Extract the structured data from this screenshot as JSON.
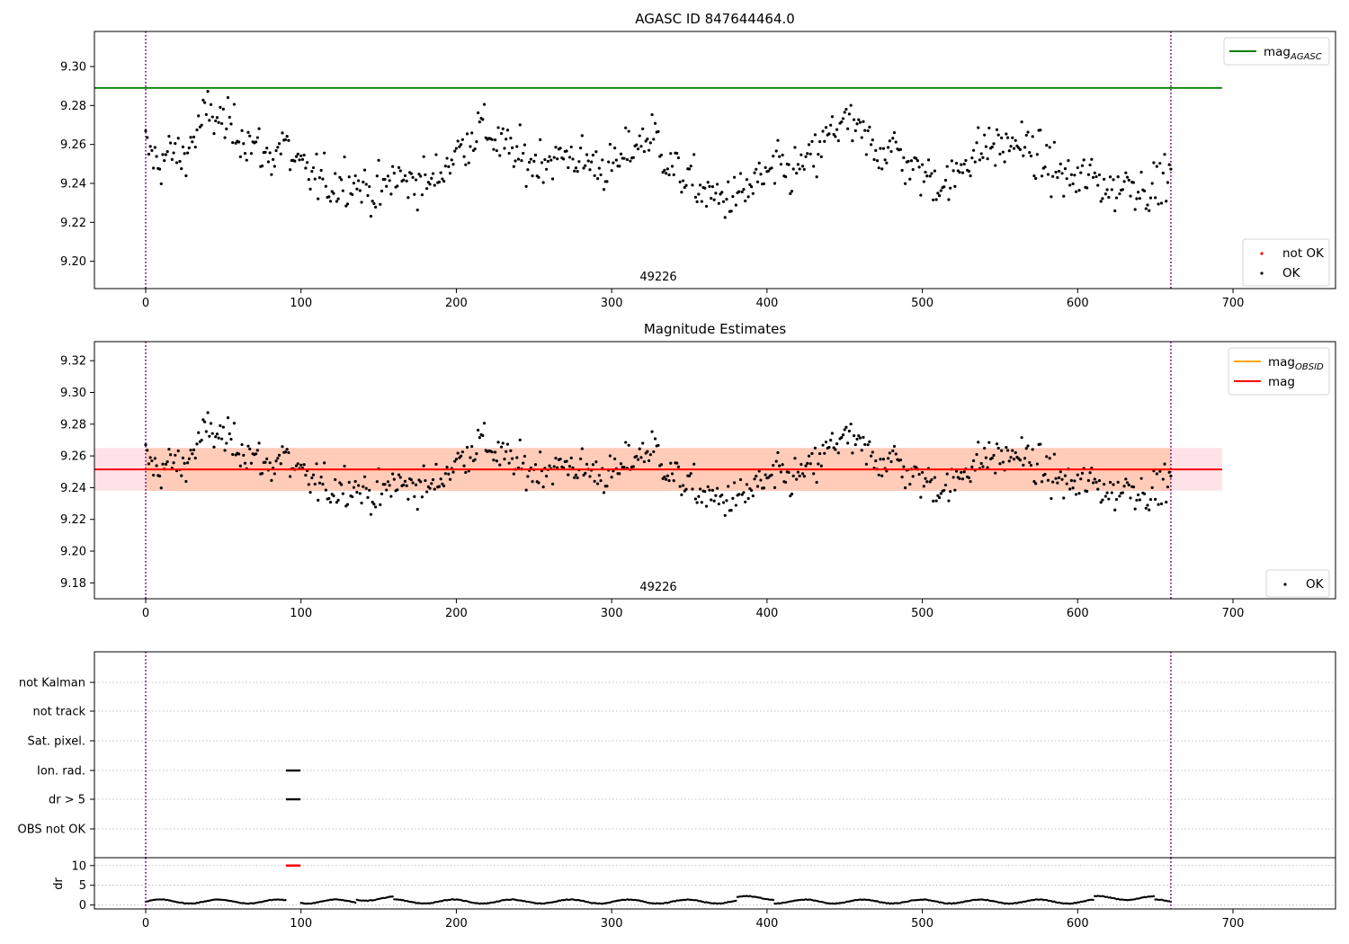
{
  "chart_data": [
    {
      "type": "scatter",
      "title": "AGASC ID 847644464.0",
      "xlim": [
        -33,
        766
      ],
      "ylim": [
        9.186,
        9.318
      ],
      "xticks": [
        0,
        100,
        200,
        300,
        400,
        500,
        600,
        700
      ],
      "yticks": [
        9.2,
        9.22,
        9.24,
        9.26,
        9.28,
        9.3
      ],
      "obs_boundaries": [
        0,
        660
      ],
      "obsid_label": "49226",
      "mag_agasc": 9.289,
      "mag_agasc_xrange": [
        -33,
        693
      ],
      "points_ok": {
        "x": [
          0,
          8,
          16,
          24,
          32,
          40,
          48,
          56,
          64,
          72,
          80,
          88,
          96,
          104,
          112,
          120,
          128,
          136,
          144,
          152,
          160,
          168,
          176,
          184,
          192,
          200,
          208,
          216,
          224,
          232,
          240,
          248,
          256,
          264,
          272,
          280,
          288,
          296,
          304,
          312,
          320,
          328,
          336,
          344,
          352,
          360,
          368,
          376,
          384,
          392,
          400,
          408,
          416,
          424,
          432,
          440,
          448,
          456,
          464,
          472,
          480,
          488,
          496,
          504,
          512,
          520,
          528,
          536,
          544,
          552,
          560,
          568,
          576,
          584,
          592,
          600,
          608,
          616,
          624,
          632,
          640,
          648,
          656,
          660
        ],
        "y": [
          9.259,
          9.25,
          9.256,
          9.253,
          9.265,
          9.277,
          9.272,
          9.268,
          9.264,
          9.258,
          9.252,
          9.262,
          9.25,
          9.245,
          9.242,
          9.238,
          9.243,
          9.24,
          9.236,
          9.235,
          9.244,
          9.24,
          9.242,
          9.24,
          9.248,
          9.256,
          9.262,
          9.27,
          9.263,
          9.258,
          9.254,
          9.25,
          9.253,
          9.252,
          9.255,
          9.252,
          9.25,
          9.248,
          9.249,
          9.258,
          9.262,
          9.265,
          9.25,
          9.245,
          9.24,
          9.235,
          9.232,
          9.233,
          9.234,
          9.24,
          9.244,
          9.248,
          9.245,
          9.25,
          9.254,
          9.265,
          9.272,
          9.268,
          9.262,
          9.256,
          9.26,
          9.252,
          9.246,
          9.244,
          9.24,
          9.241,
          9.253,
          9.256,
          9.26,
          9.258,
          9.262,
          9.258,
          9.252,
          9.248,
          9.243,
          9.241,
          9.244,
          9.24,
          9.236,
          9.242,
          9.238,
          9.237,
          9.243,
          9.244
        ]
      },
      "legend": [
        {
          "label": "mag",
          "sub": "AGASC",
          "color": "#008000",
          "kind": "line"
        },
        {
          "label": "not OK",
          "sub": "",
          "color": "#ff0000",
          "kind": "marker"
        },
        {
          "label": "OK",
          "sub": "",
          "color": "#000000",
          "kind": "marker"
        }
      ]
    },
    {
      "type": "scatter",
      "title": "Magnitude Estimates",
      "xlim": [
        -33,
        766
      ],
      "ylim": [
        9.17,
        9.332
      ],
      "xticks": [
        0,
        100,
        200,
        300,
        400,
        500,
        600,
        700
      ],
      "yticks": [
        9.18,
        9.2,
        9.22,
        9.24,
        9.26,
        9.28,
        9.3,
        9.32
      ],
      "obs_boundaries": [
        0,
        660
      ],
      "obsid_label": "49226",
      "mag": 9.2515,
      "mag_band": [
        9.238,
        9.265
      ],
      "mag_obsid": 9.2515,
      "band_xrange": [
        -33,
        693
      ],
      "legend": [
        {
          "label": "mag",
          "sub": "OBSID",
          "color": "#ffa500",
          "kind": "line"
        },
        {
          "label": "mag",
          "sub": "",
          "color": "#ff0000",
          "kind": "line"
        },
        {
          "label": "OK",
          "sub": "",
          "color": "#000000",
          "kind": "marker"
        }
      ]
    },
    {
      "type": "scatter",
      "title": "",
      "xlim": [
        -33,
        766
      ],
      "flag_categories": [
        "not Kalman",
        "not track",
        "Sat. pixel.",
        "Ion. rad.",
        "dr > 5",
        "OBS not OK"
      ],
      "flag_spans": [
        {
          "category": "Ion. rad.",
          "x": [
            91,
            99
          ]
        },
        {
          "category": "dr > 5",
          "x": [
            91,
            99
          ]
        }
      ],
      "dr_ylabel": "dr",
      "dr_yticks": [
        0,
        5,
        10
      ],
      "dr_ylim": [
        -1,
        12
      ],
      "dr_clip_span": {
        "x": [
          91,
          99
        ],
        "value": 10
      },
      "dr_segments": [
        [
          0,
          70
        ],
        [
          100,
          160
        ],
        [
          160,
          280
        ],
        [
          280,
          370
        ],
        [
          370,
          410
        ],
        [
          410,
          510
        ],
        [
          510,
          610
        ],
        [
          610,
          660
        ]
      ],
      "xticks": [
        0,
        100,
        200,
        300,
        400,
        500,
        600,
        700
      ]
    }
  ]
}
